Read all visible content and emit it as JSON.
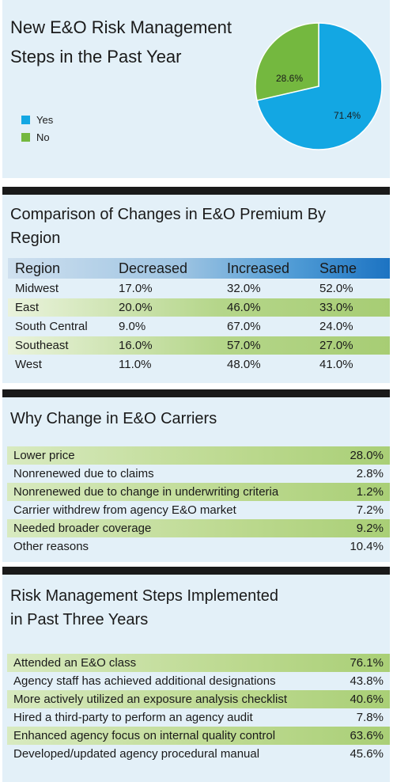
{
  "pie": {
    "title_line1": "New E&O Risk Management",
    "title_line2": "Steps in the Past Year",
    "legend": [
      {
        "label": "Yes",
        "color": "#13a7e3"
      },
      {
        "label": "No",
        "color": "#74b83f"
      }
    ],
    "yes_label": "71.4%",
    "no_label": "28.6%"
  },
  "region_table": {
    "title_line1": "Comparison of Changes in E&O Premium By",
    "title_line2": "Region",
    "headers": [
      "Region",
      "Decreased",
      "Increased",
      "Same"
    ],
    "rows": [
      [
        "Midwest",
        "17.0%",
        "32.0%",
        "52.0%"
      ],
      [
        "East",
        "20.0%",
        "46.0%",
        "33.0%"
      ],
      [
        "South Central",
        "9.0%",
        "67.0%",
        "24.0%"
      ],
      [
        "Southeast",
        "16.0%",
        "57.0%",
        "27.0%"
      ],
      [
        "West",
        "11.0%",
        "48.0%",
        "41.0%"
      ]
    ]
  },
  "carriers": {
    "title": "Why Change in E&O Carriers",
    "rows": [
      {
        "label": "Lower price",
        "value": "28.0%"
      },
      {
        "label": "Nonrenewed due to claims",
        "value": "2.8%"
      },
      {
        "label": "Nonrenewed due to change in underwriting criteria",
        "value": "1.2%"
      },
      {
        "label": "Carrier withdrew from agency E&O market",
        "value": "7.2%"
      },
      {
        "label": "Needed broader coverage",
        "value": "9.2%"
      },
      {
        "label": "Other reasons",
        "value": "10.4%"
      }
    ]
  },
  "steps": {
    "title_line1": "Risk Management Steps Implemented",
    "title_line2": "in Past Three Years",
    "rows": [
      {
        "label": "Attended an E&O class",
        "value": "76.1%"
      },
      {
        "label": "Agency staff has achieved additional designations",
        "value": "43.8%"
      },
      {
        "label": "More actively utilized an exposure analysis checklist",
        "value": "40.6%"
      },
      {
        "label": "Hired a third-party to perform an agency audit",
        "value": "7.8%"
      },
      {
        "label": "Enhanced agency focus on internal quality control",
        "value": "63.6%"
      },
      {
        "label": "Developed/updated agency procedural manual",
        "value": "45.6%"
      }
    ]
  },
  "chart_data": [
    {
      "type": "pie",
      "title": "New E&O Risk Management Steps in the Past Year",
      "categories": [
        "Yes",
        "No"
      ],
      "values": [
        71.4,
        28.6
      ],
      "legend": "left"
    },
    {
      "type": "table",
      "title": "Comparison of Changes in E&O Premium By Region",
      "columns": [
        "Region",
        "Decreased",
        "Increased",
        "Same"
      ],
      "rows": [
        [
          "Midwest",
          17.0,
          32.0,
          52.0
        ],
        [
          "East",
          20.0,
          46.0,
          33.0
        ],
        [
          "South Central",
          9.0,
          67.0,
          24.0
        ],
        [
          "Southeast",
          16.0,
          57.0,
          27.0
        ],
        [
          "West",
          11.0,
          48.0,
          41.0
        ]
      ]
    },
    {
      "type": "table",
      "title": "Why Change in E&O Carriers",
      "categories": [
        "Lower price",
        "Nonrenewed due to claims",
        "Nonrenewed due to change in underwriting criteria",
        "Carrier withdrew from agency E&O market",
        "Needed broader coverage",
        "Other reasons"
      ],
      "values": [
        28.0,
        2.8,
        1.2,
        7.2,
        9.2,
        10.4
      ]
    },
    {
      "type": "table",
      "title": "Risk Management Steps Implemented in Past Three Years",
      "categories": [
        "Attended an E&O class",
        "Agency staff has achieved additional designations",
        "More actively utilized an exposure analysis checklist",
        "Hired a third-party to perform an agency audit",
        "Enhanced agency focus on internal quality control",
        "Developed/updated agency procedural manual"
      ],
      "values": [
        76.1,
        43.8,
        40.6,
        7.8,
        63.6,
        45.6
      ]
    }
  ]
}
